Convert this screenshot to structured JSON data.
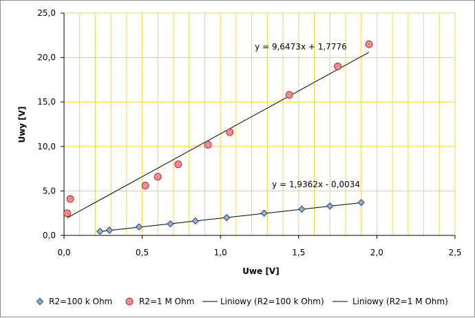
{
  "chart_data": {
    "type": "scatter",
    "xlabel": "Uwe [V]",
    "ylabel": "Uwy [V]",
    "xlim": [
      0,
      2.5
    ],
    "ylim": [
      0,
      25
    ],
    "x_ticks": [
      "0,0",
      "0,5",
      "1,0",
      "1,5",
      "2,0",
      "2,5"
    ],
    "y_ticks": [
      "0,0",
      "5,0",
      "10,0",
      "15,0",
      "20,0",
      "25,0"
    ],
    "grid": "vertical every 0.1 and horizontal every 5, yellow",
    "legend_position": "bottom",
    "series": [
      {
        "name": "R2=100 k Ohm",
        "marker": "diamond",
        "color": "#7fa7d0",
        "points": [
          [
            0.23,
            0.45
          ],
          [
            0.29,
            0.58
          ],
          [
            0.48,
            0.95
          ],
          [
            0.68,
            1.3
          ],
          [
            0.84,
            1.62
          ],
          [
            1.04,
            2.0
          ],
          [
            1.28,
            2.5
          ],
          [
            1.52,
            2.95
          ],
          [
            1.7,
            3.3
          ],
          [
            1.9,
            3.7
          ]
        ]
      },
      {
        "name": "R2=1 M Ohm",
        "marker": "circle",
        "color": "#f08080",
        "points": [
          [
            0.02,
            2.5
          ],
          [
            0.04,
            4.1
          ],
          [
            0.52,
            5.6
          ],
          [
            0.6,
            6.6
          ],
          [
            0.73,
            8.0
          ],
          [
            0.92,
            10.2
          ],
          [
            1.06,
            11.6
          ],
          [
            1.44,
            15.8
          ],
          [
            1.75,
            19.0
          ],
          [
            1.95,
            21.5
          ]
        ]
      }
    ],
    "trendlines": [
      {
        "name": "Liniowy (R2=100 k Ohm)",
        "slope": 1.9362,
        "intercept": -0.0034,
        "x_range": [
          0.23,
          1.9
        ],
        "equation": "y = 1,9362x - 0,0034"
      },
      {
        "name": "Liniowy (R2=1 M Ohm)",
        "slope": 9.6473,
        "intercept": 1.7776,
        "x_range": [
          0.02,
          1.95
        ],
        "equation": "y = 9,6473x + 1,7776"
      }
    ]
  }
}
